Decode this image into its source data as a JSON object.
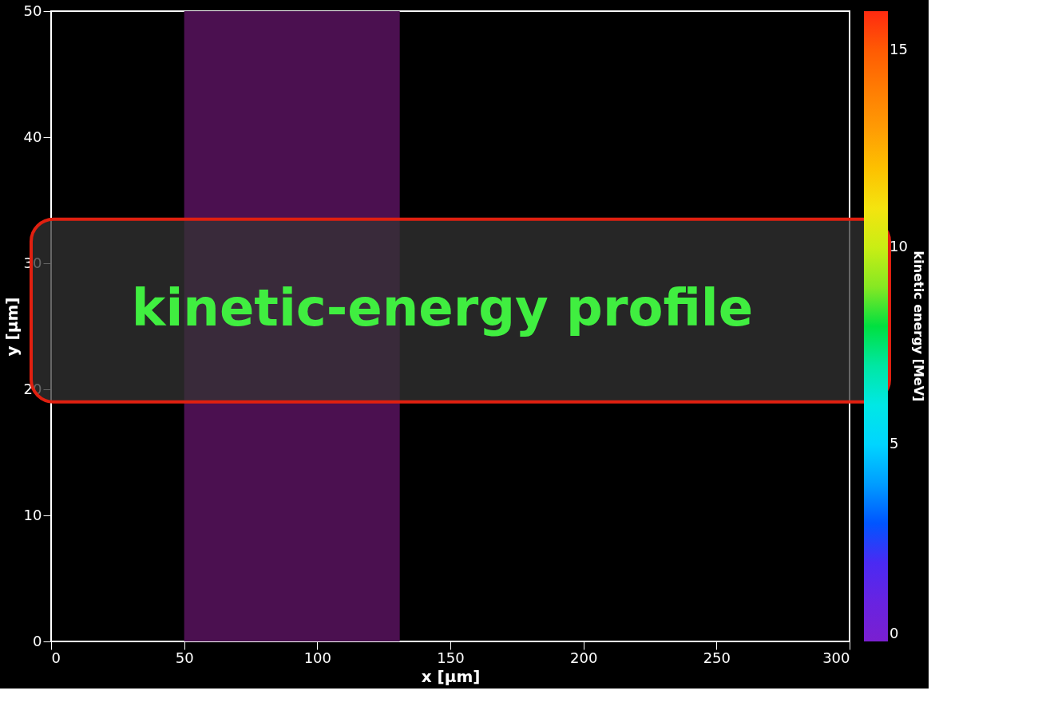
{
  "chart_data": {
    "type": "area",
    "title": "kinetic-energy profile",
    "xlabel": "x [μm]",
    "ylabel": "y [μm]",
    "clabel": "kinetic energy [MeV]",
    "series": [
      {
        "color": "#4b1050",
        "x": [
          50,
          131
        ],
        "values": [
          50,
          50
        ]
      }
    ],
    "xlim": [
      0,
      300
    ],
    "xticks": [
      0,
      50,
      100,
      150,
      200,
      250,
      300
    ],
    "ylim": [
      0,
      50
    ],
    "yticks": [
      0,
      10,
      20,
      30,
      40,
      50
    ],
    "clim": [
      0,
      16
    ],
    "cticks": [
      0,
      5,
      10,
      15
    ],
    "colors": [
      "#7a1fd0",
      "#1f2fff",
      "#00e5ff",
      "#00e040",
      "#f0f020",
      "#ff9010",
      "#ff2a10"
    ],
    "grid": false
  }
}
